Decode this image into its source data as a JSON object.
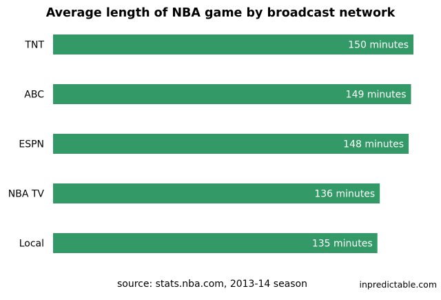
{
  "chart_data": {
    "type": "bar",
    "orientation": "horizontal",
    "title": "Average length of NBA game by broadcast network",
    "categories": [
      "TNT",
      "ABC",
      "ESPN",
      "NBA TV",
      "Local"
    ],
    "values": [
      150,
      149,
      148,
      136,
      135
    ],
    "data_labels": [
      "150 minutes",
      "149 minutes",
      "148 minutes",
      "136 minutes",
      "135 minutes"
    ],
    "xlim": [
      0,
      150
    ],
    "grid": false,
    "bar_color": "#339966",
    "label_color": "#ffffff"
  },
  "footer": {
    "source": "source: stats.nba.com, 2013-14 season",
    "credit": "inpredictable.com"
  }
}
